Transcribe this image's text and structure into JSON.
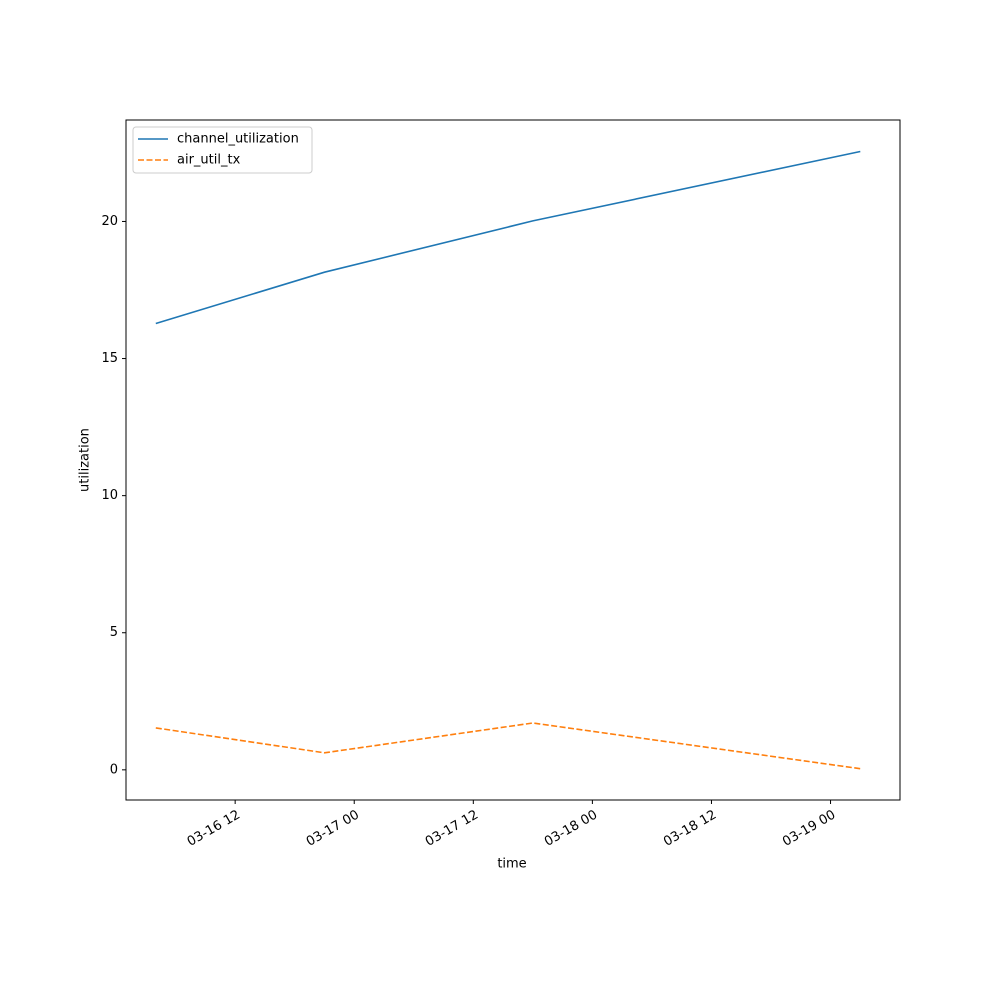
{
  "chart_data": {
    "type": "line",
    "x_label": "time",
    "y_label": "utilization",
    "x": [
      "03-16 04",
      "03-16 21",
      "03-17 18",
      "03-19 03"
    ],
    "series": [
      {
        "name": "channel_utilization",
        "color": "#1f77b4",
        "linestyle": "solid",
        "values": [
          16.28,
          18.15,
          20.02,
          22.55
        ]
      },
      {
        "name": "air_util_tx",
        "color": "#ff7f0e",
        "linestyle": "dashed",
        "values": [
          1.53,
          0.62,
          1.71,
          0.04
        ]
      }
    ],
    "xlim": [
      "03-16 01",
      "03-19 07"
    ],
    "xticks": [
      "03-16 12",
      "03-17 00",
      "03-17 12",
      "03-18 00",
      "03-18 12",
      "03-19 00"
    ],
    "ylim": [
      -1.1,
      23.7
    ],
    "yticks": [
      0,
      5,
      10,
      15,
      20
    ],
    "grid": false,
    "legend": "upper left"
  }
}
